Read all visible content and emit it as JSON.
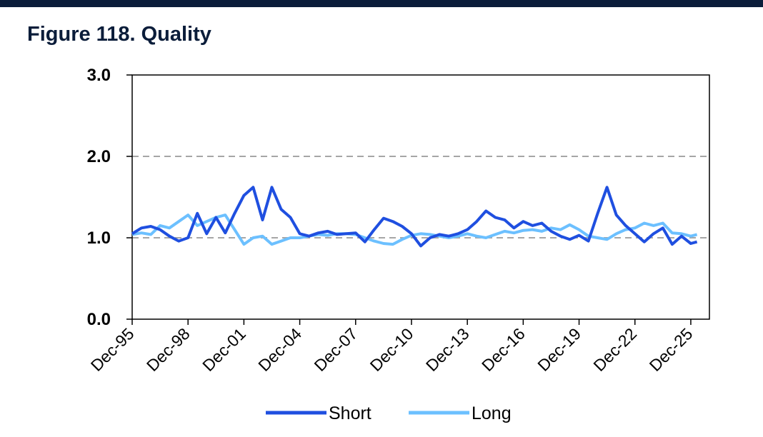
{
  "header": {
    "figure_title": "Figure 118. Quality"
  },
  "colors": {
    "top_bar": "#0b1d3a",
    "short": "#1f4fe0",
    "long": "#6cc0ff",
    "grid": "#a6a6a6"
  },
  "chart_data": {
    "type": "line",
    "title": "Figure 118. Quality",
    "xlabel": "",
    "ylabel": "",
    "ylim": [
      0.0,
      3.0
    ],
    "xlim": [
      "Dec-95",
      "Dec-26"
    ],
    "y_ticks": [
      "0.0",
      "1.0",
      "2.0",
      "3.0"
    ],
    "x_ticks": [
      "Dec-95",
      "Dec-98",
      "Dec-01",
      "Dec-04",
      "Dec-07",
      "Dec-10",
      "Dec-13",
      "Dec-16",
      "Dec-19",
      "Dec-22",
      "Dec-25"
    ],
    "grid": "horizontal dashed",
    "legend_position": "bottom",
    "series": [
      {
        "name": "Short",
        "points": [
          [
            "Dec-95",
            1.05
          ],
          [
            "Jun-96",
            1.12
          ],
          [
            "Dec-96",
            1.14
          ],
          [
            "Jun-97",
            1.1
          ],
          [
            "Dec-97",
            1.02
          ],
          [
            "Jun-98",
            0.96
          ],
          [
            "Dec-98",
            1.0
          ],
          [
            "Jun-99",
            1.3
          ],
          [
            "Dec-99",
            1.05
          ],
          [
            "Jun-00",
            1.25
          ],
          [
            "Dec-00",
            1.06
          ],
          [
            "Jun-01",
            1.3
          ],
          [
            "Dec-01",
            1.52
          ],
          [
            "Jun-02",
            1.62
          ],
          [
            "Dec-02",
            1.22
          ],
          [
            "Jun-03",
            1.62
          ],
          [
            "Dec-03",
            1.35
          ],
          [
            "Jun-04",
            1.25
          ],
          [
            "Dec-04",
            1.05
          ],
          [
            "Jun-05",
            1.02
          ],
          [
            "Dec-05",
            1.06
          ],
          [
            "Jun-06",
            1.08
          ],
          [
            "Dec-06",
            1.04
          ],
          [
            "Jun-07",
            1.05
          ],
          [
            "Dec-07",
            1.06
          ],
          [
            "Jun-08",
            0.95
          ],
          [
            "Dec-08",
            1.1
          ],
          [
            "Jun-09",
            1.24
          ],
          [
            "Dec-09",
            1.2
          ],
          [
            "Jun-10",
            1.14
          ],
          [
            "Dec-10",
            1.05
          ],
          [
            "Jun-11",
            0.9
          ],
          [
            "Dec-11",
            1.0
          ],
          [
            "Jun-12",
            1.04
          ],
          [
            "Dec-12",
            1.02
          ],
          [
            "Jun-13",
            1.05
          ],
          [
            "Dec-13",
            1.1
          ],
          [
            "Jun-14",
            1.2
          ],
          [
            "Dec-14",
            1.33
          ],
          [
            "Jun-15",
            1.25
          ],
          [
            "Dec-15",
            1.22
          ],
          [
            "Jun-16",
            1.12
          ],
          [
            "Dec-16",
            1.2
          ],
          [
            "Jun-17",
            1.15
          ],
          [
            "Dec-17",
            1.18
          ],
          [
            "Jun-18",
            1.08
          ],
          [
            "Dec-18",
            1.02
          ],
          [
            "Jun-19",
            0.98
          ],
          [
            "Dec-19",
            1.03
          ],
          [
            "Jun-20",
            0.96
          ],
          [
            "Dec-20",
            1.3
          ],
          [
            "Jun-21",
            1.62
          ],
          [
            "Dec-21",
            1.28
          ],
          [
            "Jun-22",
            1.15
          ],
          [
            "Dec-22",
            1.05
          ],
          [
            "Jun-23",
            0.95
          ],
          [
            "Dec-23",
            1.05
          ],
          [
            "Jun-24",
            1.12
          ],
          [
            "Dec-24",
            0.92
          ],
          [
            "Jun-25",
            1.02
          ],
          [
            "Dec-25",
            0.93
          ],
          [
            "Apr-26",
            0.95
          ]
        ]
      },
      {
        "name": "Long",
        "points": [
          [
            "Dec-95",
            1.04
          ],
          [
            "Jun-96",
            1.06
          ],
          [
            "Dec-96",
            1.04
          ],
          [
            "Jun-97",
            1.15
          ],
          [
            "Dec-97",
            1.12
          ],
          [
            "Jun-98",
            1.2
          ],
          [
            "Dec-98",
            1.28
          ],
          [
            "Jun-99",
            1.15
          ],
          [
            "Dec-99",
            1.2
          ],
          [
            "Jun-00",
            1.25
          ],
          [
            "Dec-00",
            1.28
          ],
          [
            "Jun-01",
            1.1
          ],
          [
            "Dec-01",
            0.92
          ],
          [
            "Jun-02",
            1.0
          ],
          [
            "Dec-02",
            1.02
          ],
          [
            "Jun-03",
            0.92
          ],
          [
            "Dec-03",
            0.96
          ],
          [
            "Jun-04",
            1.0
          ],
          [
            "Dec-04",
            1.0
          ],
          [
            "Jun-05",
            1.02
          ],
          [
            "Dec-05",
            1.04
          ],
          [
            "Jun-06",
            1.03
          ],
          [
            "Dec-06",
            1.05
          ],
          [
            "Jun-07",
            1.05
          ],
          [
            "Dec-07",
            1.04
          ],
          [
            "Jun-08",
            1.0
          ],
          [
            "Dec-08",
            0.96
          ],
          [
            "Jun-09",
            0.93
          ],
          [
            "Dec-09",
            0.92
          ],
          [
            "Jun-10",
            0.98
          ],
          [
            "Dec-10",
            1.03
          ],
          [
            "Jun-11",
            1.05
          ],
          [
            "Dec-11",
            1.04
          ],
          [
            "Jun-12",
            1.02
          ],
          [
            "Dec-12",
            1.0
          ],
          [
            "Jun-13",
            1.02
          ],
          [
            "Dec-13",
            1.05
          ],
          [
            "Jun-14",
            1.02
          ],
          [
            "Dec-14",
            1.0
          ],
          [
            "Jun-15",
            1.04
          ],
          [
            "Dec-15",
            1.08
          ],
          [
            "Jun-16",
            1.06
          ],
          [
            "Dec-16",
            1.09
          ],
          [
            "Jun-17",
            1.1
          ],
          [
            "Dec-17",
            1.08
          ],
          [
            "Jun-18",
            1.12
          ],
          [
            "Dec-18",
            1.1
          ],
          [
            "Jun-19",
            1.16
          ],
          [
            "Dec-19",
            1.1
          ],
          [
            "Jun-20",
            1.02
          ],
          [
            "Dec-20",
            1.0
          ],
          [
            "Jun-21",
            0.98
          ],
          [
            "Dec-21",
            1.05
          ],
          [
            "Jun-22",
            1.1
          ],
          [
            "Dec-22",
            1.12
          ],
          [
            "Jun-23",
            1.18
          ],
          [
            "Dec-23",
            1.15
          ],
          [
            "Jun-24",
            1.18
          ],
          [
            "Dec-24",
            1.06
          ],
          [
            "Jun-25",
            1.05
          ],
          [
            "Dec-25",
            1.02
          ],
          [
            "Apr-26",
            1.04
          ]
        ]
      }
    ]
  }
}
